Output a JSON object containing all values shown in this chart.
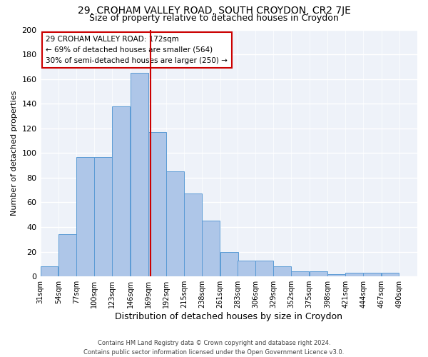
{
  "title": "29, CROHAM VALLEY ROAD, SOUTH CROYDON, CR2 7JE",
  "subtitle": "Size of property relative to detached houses in Croydon",
  "xlabel": "Distribution of detached houses by size in Croydon",
  "ylabel": "Number of detached properties",
  "bin_starts": [
    31,
    54,
    77,
    100,
    123,
    146,
    169,
    192,
    215,
    238,
    261,
    283,
    306,
    329,
    352,
    375,
    398,
    421,
    444,
    467
  ],
  "bin_width": 23,
  "counts": [
    8,
    34,
    97,
    97,
    138,
    165,
    117,
    85,
    67,
    45,
    20,
    13,
    13,
    8,
    4,
    4,
    2,
    3,
    3,
    3
  ],
  "property_size": 172,
  "annotation_line1": "29 CROHAM VALLEY ROAD: 172sqm",
  "annotation_line2": "← 69% of detached houses are smaller (564)",
  "annotation_line3": "30% of semi-detached houses are larger (250) →",
  "bar_color": "#aec6e8",
  "bar_edge_color": "#5b9bd5",
  "vline_color": "#cc0000",
  "annotation_box_edge_color": "#cc0000",
  "background_color": "#eef2f9",
  "ylim": [
    0,
    200
  ],
  "yticks": [
    0,
    20,
    40,
    60,
    80,
    100,
    120,
    140,
    160,
    180,
    200
  ],
  "xtick_labels": [
    "31sqm",
    "54sqm",
    "77sqm",
    "100sqm",
    "123sqm",
    "146sqm",
    "169sqm",
    "192sqm",
    "215sqm",
    "238sqm",
    "261sqm",
    "283sqm",
    "306sqm",
    "329sqm",
    "352sqm",
    "375sqm",
    "398sqm",
    "421sqm",
    "444sqm",
    "467sqm",
    "490sqm"
  ],
  "footer": "Contains HM Land Registry data © Crown copyright and database right 2024.\nContains public sector information licensed under the Open Government Licence v3.0.",
  "title_fontsize": 10,
  "subtitle_fontsize": 9,
  "ylabel_fontsize": 8,
  "xlabel_fontsize": 9,
  "annotation_fontsize": 7.5,
  "footer_fontsize": 6
}
